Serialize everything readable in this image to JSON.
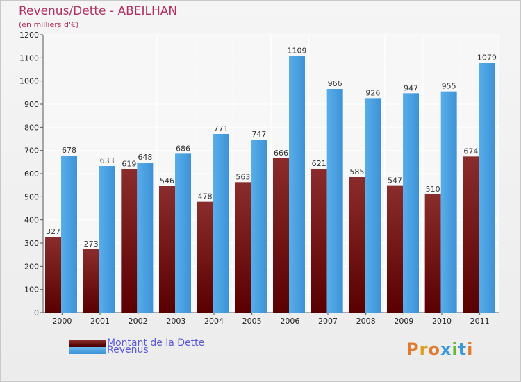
{
  "title": "Revenus/Dette - ABEILHAN",
  "subtitle": "(en milliers d'€)",
  "logo": {
    "text": "Proxiti"
  },
  "colors": {
    "dette": "#6e0f14",
    "dette_light": "#8a2a2a",
    "revenus": "#4ba3e6",
    "revenus_dark": "#3a8ed3",
    "title": "#b03060",
    "legend_text": "#5a5ad8"
  },
  "chart_data": {
    "type": "bar",
    "title": "Revenus/Dette - ABEILHAN",
    "ylabel": "(en milliers d'€)",
    "xlabel": "",
    "categories": [
      "2000",
      "2001",
      "2002",
      "2003",
      "2004",
      "2005",
      "2006",
      "2007",
      "2008",
      "2009",
      "2010",
      "2011"
    ],
    "series": [
      {
        "name": "Montant de la Dette",
        "values": [
          327,
          273,
          619,
          546,
          478,
          563,
          666,
          621,
          585,
          547,
          510,
          674
        ]
      },
      {
        "name": "Revenus",
        "values": [
          678,
          633,
          648,
          686,
          771,
          747,
          1109,
          966,
          926,
          947,
          955,
          1079
        ]
      }
    ],
    "ylim": [
      0,
      1200
    ],
    "yticks": [
      0,
      100,
      200,
      300,
      400,
      500,
      600,
      700,
      800,
      900,
      1000,
      1100,
      1200
    ],
    "grid": true,
    "legend": "bottom-left"
  }
}
